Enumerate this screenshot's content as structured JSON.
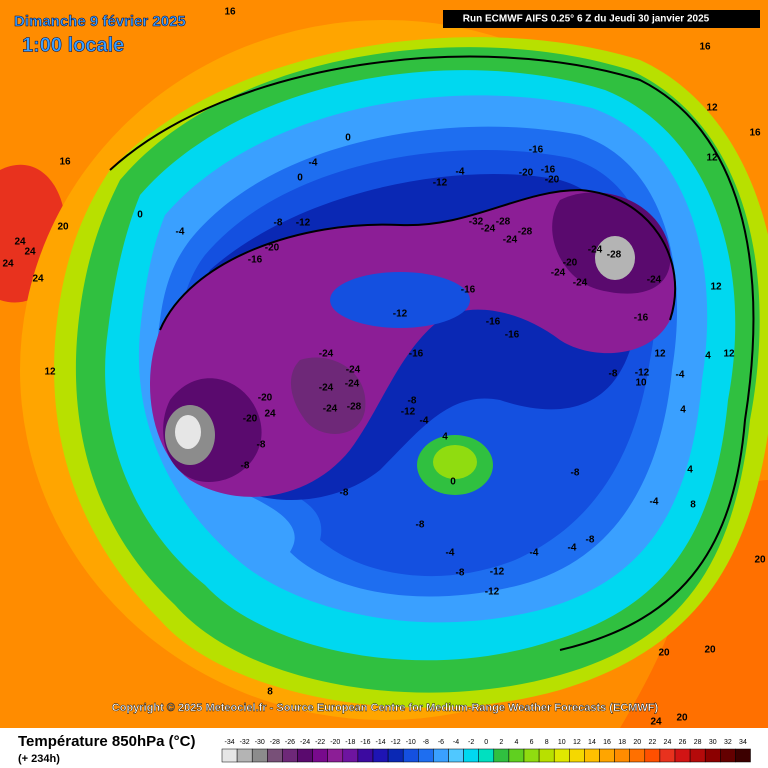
{
  "header": {
    "title": "Dimanche 9 février 2025",
    "time": "1:00 locale",
    "run": "Run ECMWF AIFS 0.25° 6 Z du Jeudi 30 janvier 2025"
  },
  "map": {
    "contour_labels": [
      16,
      16,
      12,
      16,
      12,
      16,
      24,
      24,
      24,
      24,
      20,
      0,
      -4,
      0,
      -4,
      0,
      -12,
      -4,
      -8,
      -12,
      -20,
      -16,
      -16,
      -20,
      -16,
      -20,
      -32,
      -28,
      -24,
      -24,
      -28,
      -24,
      -28,
      -20,
      -24,
      -24,
      -24,
      12,
      -16,
      -12,
      -16,
      -16,
      -16,
      -16,
      -24,
      -24,
      -24,
      -24,
      -20,
      24,
      -20,
      -24,
      -28,
      -8,
      -12,
      -4,
      -8,
      -8,
      -8,
      4,
      0,
      -8,
      -8,
      -4,
      -8,
      -12,
      -12,
      -4,
      -4,
      -8,
      -8,
      -12,
      10,
      -4,
      12,
      4,
      12,
      4,
      4,
      8,
      -4,
      20,
      20,
      20,
      20,
      24,
      12,
      8
    ]
  },
  "copyright": "Copyright © 2025 Meteociel.fr - Source European Centre for Medium-Range Weather Forecasts (ECMWF)",
  "legend": {
    "title": "Température 850hPa (°C)",
    "lead_time": "(+ 234h)",
    "ticks": [
      -34,
      -32,
      -30,
      -28,
      -26,
      -24,
      -22,
      -20,
      -18,
      -16,
      -14,
      -12,
      -10,
      -8,
      -6,
      -4,
      -2,
      0,
      2,
      4,
      6,
      8,
      10,
      12,
      14,
      16,
      18,
      20,
      22,
      24,
      26,
      28,
      30,
      32,
      34
    ],
    "colors": [
      "#e6e6e6",
      "#b4b4b4",
      "#8c8c8c",
      "#785078",
      "#6e2878",
      "#5a0a6e",
      "#780a8c",
      "#8c1e96",
      "#6e14a0",
      "#3c0aa0",
      "#1e14b4",
      "#0a28b4",
      "#1450e0",
      "#1e6ef0",
      "#3aa0ff",
      "#50c8ff",
      "#00d8f0",
      "#00e0c0",
      "#30c040",
      "#60d020",
      "#90dc10",
      "#b8e000",
      "#e0e800",
      "#f5d800",
      "#ffc000",
      "#ffa500",
      "#ff8c00",
      "#ff7000",
      "#ff5000",
      "#e8321e",
      "#d21414",
      "#b40a0a",
      "#8c0000",
      "#640000",
      "#3c0000"
    ]
  }
}
